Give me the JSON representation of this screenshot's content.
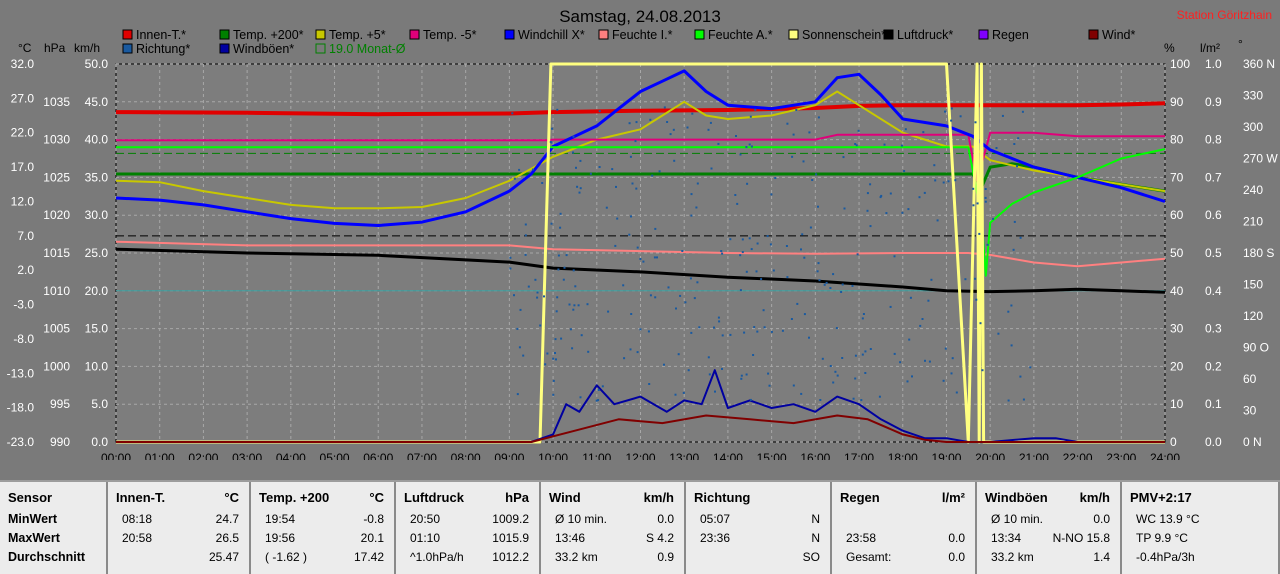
{
  "chart_data": {
    "type": "line",
    "title": "Samstag, 24.08.2013",
    "station": "Station Göritzhain",
    "x_ticks": [
      "00:00",
      "01:00",
      "02:00",
      "03:00",
      "04:00",
      "05:00",
      "06:00",
      "07:00",
      "08:00",
      "09:00",
      "10:00",
      "11:00",
      "12:00",
      "13:00",
      "14:00",
      "15:00",
      "16:00",
      "17:00",
      "18:00",
      "19:00",
      "20:00",
      "21:00",
      "22:00",
      "23:00",
      "24:00"
    ],
    "xlim": [
      0,
      24
    ],
    "left_axes": {
      "units": [
        "°C",
        "hPa",
        "km/h"
      ],
      "celsius": [
        "32.0",
        "27.0",
        "22.0",
        "17.0",
        "12.0",
        "7.0",
        "2.0",
        "-3.0",
        "-8.0",
        "-13.0",
        "-18.0",
        "-23.0"
      ],
      "hpa": [
        "1035",
        "1030",
        "1025",
        "1020",
        "1015",
        "1010",
        "1005",
        "1000",
        "995",
        "990"
      ],
      "kmh": [
        "50.0",
        "45.0",
        "40.0",
        "35.0",
        "30.0",
        "25.0",
        "20.0",
        "15.0",
        "10.0",
        "5.0",
        "0.0"
      ]
    },
    "right_axes": {
      "units": [
        "%",
        "l/m²",
        "°"
      ],
      "percent": [
        "100",
        "90",
        "80",
        "70",
        "60",
        "50",
        "40",
        "30",
        "20",
        "10",
        "0"
      ],
      "rain": [
        "1.0",
        "0.9",
        "0.8",
        "0.7",
        "0.6",
        "0.5",
        "0.4",
        "0.3",
        "0.2",
        "0.1",
        "0.0"
      ],
      "degrees": [
        "360 N",
        "330",
        "300",
        "270 W",
        "240",
        "210",
        "180 S",
        "150",
        "120",
        "90 O",
        "60",
        "30",
        "0 N"
      ]
    },
    "ylim_celsius": [
      -23,
      32
    ],
    "legend": [
      {
        "name": "Innen-T.*",
        "color": "#e00000"
      },
      {
        "name": "Temp. +200*",
        "color": "#008000"
      },
      {
        "name": "Temp. +5*",
        "color": "#c8c800"
      },
      {
        "name": "Temp. -5*",
        "color": "#e0007a"
      },
      {
        "name": "Windchill X*",
        "color": "#0000ff"
      },
      {
        "name": "Feuchte I.*",
        "color": "#ff8080"
      },
      {
        "name": "Feuchte A.*",
        "color": "#00ff00"
      },
      {
        "name": "Sonnenschein*",
        "color": "#ffff80"
      },
      {
        "name": "Luftdruck*",
        "color": "#000000"
      },
      {
        "name": "Regen",
        "color": "#8000ff"
      },
      {
        "name": "Wind*",
        "color": "#800000"
      },
      {
        "name": "Richtung*",
        "color": "#1a5aa0"
      },
      {
        "name": "Windböen*",
        "color": "#0000a0"
      },
      {
        "name": "19.0 Monat-Ø",
        "color": "#008000"
      }
    ],
    "series": [
      {
        "name": "Innen-T.*",
        "axis": "celsius",
        "color": "#e00000",
        "x": [
          0,
          3,
          6,
          9,
          10,
          12,
          14,
          16,
          17,
          18,
          20,
          22,
          23,
          24
        ],
        "y": [
          25.0,
          24.9,
          24.7,
          24.8,
          25.0,
          25.2,
          25.3,
          25.6,
          25.9,
          26.0,
          26.0,
          26.0,
          26.1,
          26.3
        ]
      },
      {
        "name": "Temp. +200*",
        "axis": "celsius",
        "color": "#008000",
        "x": [
          0,
          19.6,
          19.8,
          20,
          20.5,
          21,
          22,
          23,
          24
        ],
        "y": [
          16.0,
          16.0,
          14.0,
          17.0,
          17.5,
          17.0,
          15.5,
          14.5,
          13.5
        ]
      },
      {
        "name": "Temp. +5*",
        "axis": "celsius",
        "color": "#c8c800",
        "x": [
          0,
          1,
          2,
          3,
          4,
          5,
          6,
          7,
          8,
          9,
          10,
          11,
          12,
          12.5,
          13,
          13.5,
          14,
          15,
          16,
          16.5,
          17,
          18,
          19,
          19.6,
          20,
          21,
          22,
          23,
          24
        ],
        "y": [
          15.0,
          14.8,
          13.5,
          12.5,
          11.5,
          11.0,
          11.0,
          11.2,
          12.5,
          15.0,
          18.5,
          21.0,
          22.5,
          24.5,
          26.5,
          24.5,
          24.0,
          24.5,
          26.0,
          28.0,
          26.0,
          22.0,
          20.0,
          20.0,
          18.0,
          16.5,
          15.5,
          14.5,
          13.5
        ]
      },
      {
        "name": "Temp. -5*",
        "axis": "celsius",
        "color": "#e0007a",
        "x": [
          0,
          9.9,
          10,
          16,
          16.5,
          19.5,
          19.7,
          20,
          21,
          22,
          23,
          24
        ],
        "y": [
          20.9,
          20.9,
          21.0,
          21.0,
          21.7,
          21.7,
          15.0,
          22.0,
          22.0,
          21.5,
          21.5,
          21.5
        ]
      },
      {
        "name": "Windchill X*",
        "axis": "celsius",
        "color": "#0000ff",
        "x": [
          0,
          1,
          2,
          3,
          4,
          5,
          6,
          7,
          8,
          9,
          9.5,
          10,
          11,
          11.5,
          12,
          12.5,
          13,
          13.5,
          14,
          15,
          16,
          16.5,
          17,
          17.5,
          18,
          19,
          19.6,
          20,
          21,
          22,
          23,
          24
        ],
        "y": [
          12.5,
          12.2,
          11.5,
          10.5,
          9.5,
          8.8,
          8.5,
          9.0,
          10.5,
          13.5,
          16.0,
          20.0,
          23.0,
          25.5,
          28.0,
          29.5,
          31.0,
          28.0,
          26.0,
          25.5,
          26.5,
          30.0,
          30.5,
          27.5,
          24.0,
          23.0,
          21.5,
          19.5,
          17.0,
          15.5,
          14.0,
          12.0
        ]
      },
      {
        "name": "Feuchte I.*",
        "axis": "percent",
        "color": "#ff8080",
        "x": [
          0,
          3,
          6,
          9,
          10,
          12,
          14,
          16,
          18,
          19.5,
          20,
          21,
          22,
          23,
          24
        ],
        "y": [
          53.0,
          52.0,
          52.0,
          52.0,
          51.0,
          50.5,
          50.0,
          49.8,
          50.0,
          50.0,
          49.5,
          47.5,
          46.5,
          47.5,
          48.5
        ]
      },
      {
        "name": "Feuchte A.*",
        "axis": "percent",
        "color": "#00ff00",
        "x": [
          0,
          19.5,
          19.8,
          19.9,
          20,
          20.5,
          21,
          22,
          23,
          24
        ],
        "y": [
          78.0,
          78.0,
          60.0,
          44.0,
          58.0,
          63.0,
          66.0,
          70.0,
          75.0,
          77.5
        ]
      },
      {
        "name": "Luftdruck*",
        "axis": "hpa",
        "color": "#000000",
        "x": [
          0,
          3,
          6,
          9,
          10,
          12,
          14,
          16,
          18,
          19,
          20,
          21,
          22,
          23,
          24
        ],
        "y": [
          1015.5,
          1015.0,
          1014.7,
          1013.8,
          1013.0,
          1012.5,
          1011.8,
          1011.3,
          1010.5,
          1010.0,
          1009.9,
          1010.0,
          1010.2,
          1010.0,
          1009.8
        ]
      },
      {
        "name": "Sonnenschein*",
        "axis": "percent",
        "color": "#ffff80",
        "x": [
          0,
          9.7,
          9.95,
          19.0,
          19.5,
          19.7,
          19.75,
          19.8,
          19.85,
          20,
          24
        ],
        "y": [
          0,
          0,
          100,
          100,
          0,
          100,
          0,
          100,
          0,
          0,
          0
        ]
      },
      {
        "name": "Windböen*",
        "axis": "kmh",
        "color": "#0000a0",
        "x": [
          0,
          9.5,
          10,
          10.3,
          10.6,
          11,
          11.4,
          12,
          12.6,
          13,
          13.4,
          13.7,
          14,
          14.5,
          15,
          15.5,
          16,
          16.5,
          17,
          17.5,
          18,
          18.5,
          19,
          19.5,
          20,
          21,
          21.5,
          22,
          24
        ],
        "y": [
          0,
          0,
          1.0,
          5.0,
          4.0,
          7.5,
          5.0,
          6.0,
          4.0,
          5.5,
          5.0,
          9.5,
          4.5,
          5.5,
          4.5,
          5.0,
          4.0,
          6.0,
          5.0,
          3.0,
          1.5,
          0.5,
          0.5,
          0,
          0,
          0.5,
          0.5,
          0,
          0
        ]
      },
      {
        "name": "Wind*",
        "axis": "kmh",
        "color": "#800000",
        "x": [
          0,
          9.5,
          10.5,
          11.5,
          12.5,
          13.5,
          14.5,
          15.5,
          16.5,
          17.2,
          18,
          18.5,
          19,
          24
        ],
        "y": [
          0,
          0,
          1.5,
          3.0,
          2.5,
          3.5,
          3.0,
          2.5,
          3.5,
          3.0,
          1.0,
          0.3,
          0,
          0
        ]
      }
    ],
    "reference_lines": [
      {
        "label": "19.0 Monat-Ø",
        "axis": "celsius",
        "y": 19.0,
        "color": "#008000",
        "style": "dashed"
      },
      {
        "label": "",
        "axis": "celsius",
        "y": 7.0,
        "color": "#000000",
        "style": "dashed"
      }
    ],
    "direction_points_note": "scatter of wind direction (Richtung*) between 09:00 and 21:00"
  },
  "stats": {
    "columns": [
      {
        "title": "Sensor",
        "unit": "",
        "rows": [
          {
            "a": "MinWert",
            "b": "",
            "c": ""
          },
          {
            "a": "MaxWert",
            "b": "",
            "c": ""
          },
          {
            "a": "Durchschnitt",
            "b": "",
            "c": ""
          }
        ]
      },
      {
        "title": "Innen-T.",
        "unit": "°C",
        "rows": [
          {
            "a": "08:18",
            "b": "",
            "c": "24.7"
          },
          {
            "a": "20:58",
            "b": "",
            "c": "26.5"
          },
          {
            "a": "",
            "b": "",
            "c": "25.47"
          }
        ]
      },
      {
        "title": "Temp. +200",
        "unit": "°C",
        "rows": [
          {
            "a": "19:54",
            "b": "",
            "c": "-0.8"
          },
          {
            "a": "19:56",
            "b": "",
            "c": "20.1"
          },
          {
            "a": "( -1.62 )",
            "b": "",
            "c": "17.42"
          }
        ]
      },
      {
        "title": "Luftdruck",
        "unit": "hPa",
        "rows": [
          {
            "a": "20:50",
            "b": "",
            "c": "1009.2"
          },
          {
            "a": "01:10",
            "b": "",
            "c": "1015.9"
          },
          {
            "a": "^1.0hPa/h",
            "b": "",
            "c": "1012.2"
          }
        ]
      },
      {
        "title": "Wind",
        "unit": "km/h",
        "rows": [
          {
            "a": "Ø 10 min.",
            "b": "",
            "c": "0.0"
          },
          {
            "a": "13:46",
            "b": "S 4.2",
            "c": ""
          },
          {
            "a": "33.2 km",
            "b": "",
            "c": "0.9"
          }
        ]
      },
      {
        "title": "Richtung",
        "unit": "",
        "rows": [
          {
            "a": "05:07",
            "b": "",
            "c": "N"
          },
          {
            "a": "23:36",
            "b": "",
            "c": "N"
          },
          {
            "a": "",
            "b": "",
            "c": "SO"
          }
        ]
      },
      {
        "title": "Regen",
        "unit": "l/m²",
        "rows": [
          {
            "a": "",
            "b": "",
            "c": ""
          },
          {
            "a": "23:58",
            "b": "",
            "c": "0.0"
          },
          {
            "a": "Gesamt:",
            "b": "",
            "c": "0.0"
          }
        ]
      },
      {
        "title": "Windböen",
        "unit": "km/h",
        "rows": [
          {
            "a": "Ø 10 min.",
            "b": "",
            "c": "0.0"
          },
          {
            "a": "13:34",
            "b": "N-NO 15.8",
            "c": ""
          },
          {
            "a": "33.2 km",
            "b": "",
            "c": "1.4"
          }
        ]
      },
      {
        "title": "PMV+2:17",
        "unit": "",
        "rows": [
          {
            "a": "WC 13.9 °C",
            "b": "",
            "c": ""
          },
          {
            "a": "TP 9.9 °C",
            "b": "",
            "c": ""
          },
          {
            "a": "-0.4hPa/3h",
            "b": "",
            "c": ""
          }
        ]
      }
    ]
  }
}
